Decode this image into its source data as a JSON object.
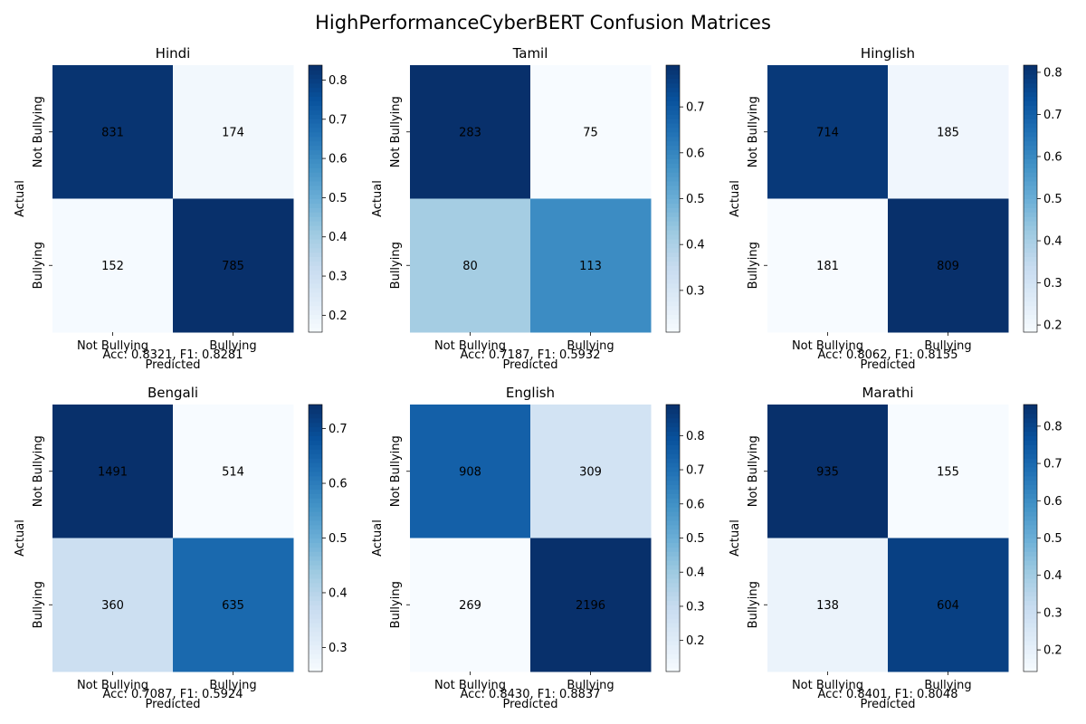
{
  "title": "HighPerformanceCyberBERT Confusion Matrices",
  "colormap": [
    "#f7fbff",
    "#deebf7",
    "#c6dbef",
    "#9ecae1",
    "#6baed6",
    "#4292c6",
    "#2171b5",
    "#08519c",
    "#08306b"
  ],
  "chart_data": [
    {
      "type": "heatmap",
      "title": "Hindi",
      "xlabel": "Predicted",
      "ylabel": "Actual",
      "x_categories": [
        "Not Bullying",
        "Bullying"
      ],
      "y_categories": [
        "Not Bullying",
        "Bullying"
      ],
      "values": [
        [
          831,
          174
        ],
        [
          152,
          785
        ]
      ],
      "metrics": "Acc: 0.8321, F1: 0.8281",
      "colorbar": {
        "range": [
          0.157,
          0.838
        ],
        "ticks": [
          0.2,
          0.3,
          0.4,
          0.5,
          0.6,
          0.7,
          0.8
        ]
      }
    },
    {
      "type": "heatmap",
      "title": "Tamil",
      "xlabel": "Predicted",
      "ylabel": "Actual",
      "x_categories": [
        "Not Bullying",
        "Bullying"
      ],
      "y_categories": [
        "Not Bullying",
        "Bullying"
      ],
      "values": [
        [
          283,
          75
        ],
        [
          80,
          113
        ]
      ],
      "metrics": "Acc: 0.7187, F1: 0.5932",
      "colorbar": {
        "range": [
          0.209,
          0.791
        ],
        "ticks": [
          0.3,
          0.4,
          0.5,
          0.6,
          0.7
        ]
      }
    },
    {
      "type": "heatmap",
      "title": "Hinglish",
      "xlabel": "Predicted",
      "ylabel": "Actual",
      "x_categories": [
        "Not Bullying",
        "Bullying"
      ],
      "y_categories": [
        "Not Bullying",
        "Bullying"
      ],
      "values": [
        [
          714,
          185
        ],
        [
          181,
          809
        ]
      ],
      "metrics": "Acc: 0.8062, F1: 0.8155",
      "colorbar": {
        "range": [
          0.183,
          0.817
        ],
        "ticks": [
          0.2,
          0.3,
          0.4,
          0.5,
          0.6,
          0.7,
          0.8
        ]
      }
    },
    {
      "type": "heatmap",
      "title": "Bengali",
      "xlabel": "Predicted",
      "ylabel": "Actual",
      "x_categories": [
        "Not Bullying",
        "Bullying"
      ],
      "y_categories": [
        "Not Bullying",
        "Bullying"
      ],
      "values": [
        [
          1491,
          514
        ],
        [
          360,
          635
        ]
      ],
      "metrics": "Acc: 0.7087, F1: 0.5924",
      "colorbar": {
        "range": [
          0.256,
          0.744
        ],
        "ticks": [
          0.3,
          0.4,
          0.5,
          0.6,
          0.7
        ]
      }
    },
    {
      "type": "heatmap",
      "title": "English",
      "xlabel": "Predicted",
      "ylabel": "Actual",
      "x_categories": [
        "Not Bullying",
        "Bullying"
      ],
      "y_categories": [
        "Not Bullying",
        "Bullying"
      ],
      "values": [
        [
          908,
          309
        ],
        [
          269,
          2196
        ]
      ],
      "metrics": "Acc: 0.8430, F1: 0.8837",
      "colorbar": {
        "range": [
          0.109,
          0.891
        ],
        "ticks": [
          0.2,
          0.3,
          0.4,
          0.5,
          0.6,
          0.7,
          0.8
        ]
      }
    },
    {
      "type": "heatmap",
      "title": "Marathi",
      "xlabel": "Predicted",
      "ylabel": "Actual",
      "x_categories": [
        "Not Bullying",
        "Bullying"
      ],
      "y_categories": [
        "Not Bullying",
        "Bullying"
      ],
      "values": [
        [
          935,
          155
        ],
        [
          138,
          604
        ]
      ],
      "metrics": "Acc: 0.8401, F1: 0.8048",
      "colorbar": {
        "range": [
          0.142,
          0.858
        ],
        "ticks": [
          0.2,
          0.3,
          0.4,
          0.5,
          0.6,
          0.7,
          0.8
        ]
      }
    }
  ]
}
